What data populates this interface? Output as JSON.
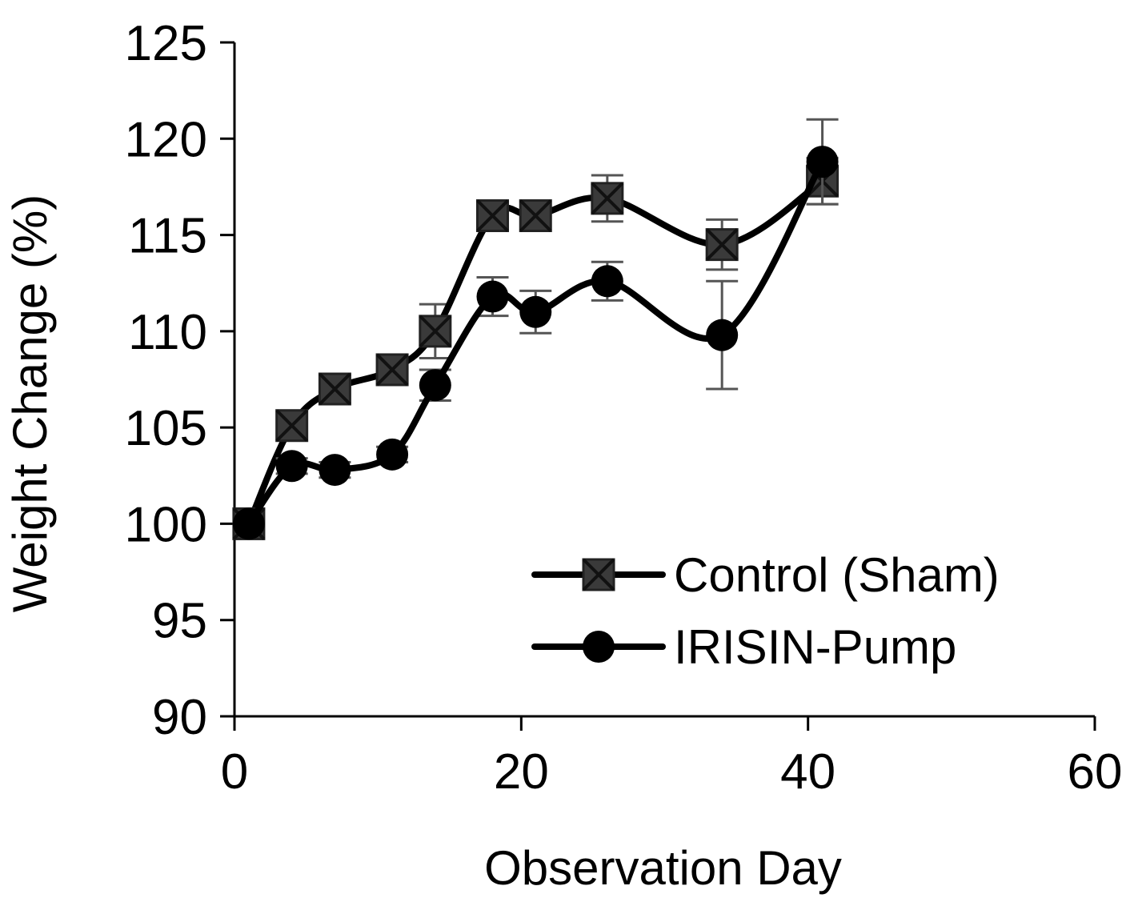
{
  "chart_data": {
    "type": "line",
    "xlabel": "Observation Day",
    "ylabel": "Weight Change (%)",
    "xlim": [
      0,
      60
    ],
    "ylim": [
      90,
      125
    ],
    "xticks": [
      0,
      20,
      40,
      60
    ],
    "yticks": [
      90,
      95,
      100,
      105,
      110,
      115,
      120,
      125
    ],
    "grid": false,
    "legend": "bottom-right",
    "series": [
      {
        "name": "Control (Sham)",
        "marker": "square-x",
        "color": "#3a3a3a",
        "x": [
          1,
          4,
          7,
          11,
          14,
          18,
          21,
          26,
          34,
          41
        ],
        "y": [
          100,
          105.1,
          107,
          108,
          110,
          116,
          116,
          116.9,
          114.5,
          117.8
        ],
        "err": [
          0,
          0.4,
          0.6,
          0.5,
          1.4,
          0.5,
          0.7,
          1.2,
          1.3,
          1.2
        ]
      },
      {
        "name": "IRISIN-Pump",
        "marker": "circle",
        "color": "#000000",
        "x": [
          1,
          4,
          7,
          11,
          14,
          18,
          21,
          26,
          34,
          41
        ],
        "y": [
          100,
          103,
          102.8,
          103.6,
          107.2,
          111.8,
          111,
          112.6,
          109.8,
          118.8
        ],
        "err": [
          0,
          0.4,
          0.4,
          0.4,
          0.8,
          1.0,
          1.1,
          1.0,
          2.8,
          2.2
        ]
      }
    ]
  }
}
